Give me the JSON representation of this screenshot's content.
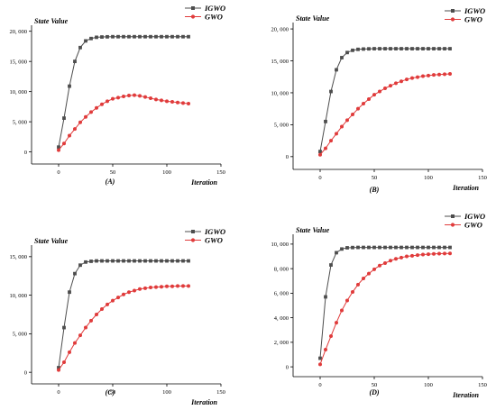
{
  "chart_data": [
    {
      "type": "line",
      "panel_label": "(A)",
      "ylabel": "State Value",
      "xlabel": "Iteration",
      "xlim": [
        -25,
        150
      ],
      "ylim": [
        -2000,
        21000
      ],
      "xticks": [
        0,
        50,
        100,
        150
      ],
      "xtick_labels": [
        "0",
        "50",
        "100",
        "150"
      ],
      "yticks": [
        0,
        5000,
        10000,
        15000,
        20000
      ],
      "ytick_labels": [
        "0",
        "5, 000",
        "10, 000",
        "15, 000",
        "20, 000"
      ],
      "legend_position": "top-right",
      "x": [
        0,
        5,
        10,
        15,
        20,
        25,
        30,
        35,
        40,
        45,
        50,
        55,
        60,
        65,
        70,
        75,
        80,
        85,
        90,
        95,
        100,
        105,
        110,
        115,
        120
      ],
      "series": [
        {
          "name": "IGWO",
          "color": "#4d4d4d",
          "marker": "square",
          "values": [
            800,
            5600,
            10900,
            15000,
            17300,
            18400,
            18800,
            19000,
            19050,
            19080,
            19100,
            19100,
            19100,
            19100,
            19100,
            19100,
            19100,
            19100,
            19100,
            19100,
            19100,
            19100,
            19100,
            19100,
            19100
          ]
        },
        {
          "name": "GWO",
          "color": "#e03b3b",
          "marker": "circle",
          "values": [
            300,
            1400,
            2700,
            3800,
            4900,
            5800,
            6600,
            7300,
            7900,
            8400,
            8800,
            9000,
            9200,
            9350,
            9400,
            9300,
            9100,
            8900,
            8700,
            8550,
            8400,
            8300,
            8200,
            8100,
            8000
          ]
        }
      ]
    },
    {
      "type": "line",
      "panel_label": "(B)",
      "ylabel": "State Value",
      "xlabel": "Iteration",
      "xlim": [
        -25,
        150
      ],
      "ylim": [
        -2000,
        21000
      ],
      "xticks": [
        0,
        50,
        100,
        150
      ],
      "xtick_labels": [
        "0",
        "50",
        "100",
        "150"
      ],
      "yticks": [
        0,
        5000,
        10000,
        15000,
        20000
      ],
      "ytick_labels": [
        "0",
        "5, 000",
        "10, 000",
        "15, 000",
        "20, 000"
      ],
      "legend_position": "top-right",
      "x": [
        0,
        5,
        10,
        15,
        20,
        25,
        30,
        35,
        40,
        45,
        50,
        55,
        60,
        65,
        70,
        75,
        80,
        85,
        90,
        95,
        100,
        105,
        110,
        115,
        120
      ],
      "series": [
        {
          "name": "IGWO",
          "color": "#4d4d4d",
          "marker": "square",
          "values": [
            800,
            5500,
            10200,
            13600,
            15500,
            16300,
            16650,
            16800,
            16850,
            16880,
            16900,
            16900,
            16900,
            16900,
            16900,
            16900,
            16900,
            16900,
            16900,
            16900,
            16900,
            16900,
            16900,
            16900,
            16900
          ]
        },
        {
          "name": "GWO",
          "color": "#e03b3b",
          "marker": "circle",
          "values": [
            300,
            1300,
            2500,
            3600,
            4700,
            5700,
            6600,
            7500,
            8300,
            9000,
            9700,
            10200,
            10700,
            11100,
            11500,
            11800,
            12100,
            12300,
            12450,
            12600,
            12700,
            12800,
            12850,
            12900,
            12950
          ]
        }
      ]
    },
    {
      "type": "line",
      "panel_label": "(C)",
      "ylabel": "State Value",
      "xlabel": "Iteration",
      "xlim": [
        -25,
        150
      ],
      "ylim": [
        -1500,
        16500
      ],
      "xticks": [
        0,
        50,
        100,
        150
      ],
      "xtick_labels": [
        "0",
        "50",
        "100",
        "150"
      ],
      "yticks": [
        0,
        5000,
        10000,
        15000
      ],
      "ytick_labels": [
        "0",
        "5, 000",
        "10, 000",
        "15, 000"
      ],
      "legend_position": "top-right",
      "x": [
        0,
        5,
        10,
        15,
        20,
        25,
        30,
        35,
        40,
        45,
        50,
        55,
        60,
        65,
        70,
        75,
        80,
        85,
        90,
        95,
        100,
        105,
        110,
        115,
        120
      ],
      "series": [
        {
          "name": "IGWO",
          "color": "#4d4d4d",
          "marker": "square",
          "values": [
            600,
            5800,
            10400,
            12800,
            13900,
            14300,
            14400,
            14450,
            14450,
            14450,
            14450,
            14450,
            14450,
            14450,
            14450,
            14450,
            14450,
            14450,
            14450,
            14450,
            14450,
            14450,
            14450,
            14450,
            14450
          ]
        },
        {
          "name": "GWO",
          "color": "#e03b3b",
          "marker": "circle",
          "values": [
            300,
            1300,
            2600,
            3800,
            4800,
            5800,
            6700,
            7500,
            8200,
            8800,
            9300,
            9700,
            10100,
            10400,
            10600,
            10800,
            10900,
            11000,
            11050,
            11100,
            11150,
            11150,
            11200,
            11200,
            11200
          ]
        }
      ]
    },
    {
      "type": "line",
      "panel_label": "(D)",
      "ylabel": "State Value",
      "xlabel": "Iteration",
      "xlim": [
        -25,
        150
      ],
      "ylim": [
        -800,
        10800
      ],
      "xticks": [
        0,
        50,
        100,
        150
      ],
      "xtick_labels": [
        "0",
        "50",
        "100",
        "150"
      ],
      "yticks": [
        0,
        2000,
        4000,
        6000,
        8000,
        10000
      ],
      "ytick_labels": [
        "0",
        "2, 000",
        "4, 000",
        "6, 000",
        "8, 000",
        "10, 000"
      ],
      "legend_position": "top-right",
      "x": [
        0,
        5,
        10,
        15,
        20,
        25,
        30,
        35,
        40,
        45,
        50,
        55,
        60,
        65,
        70,
        75,
        80,
        85,
        90,
        95,
        100,
        105,
        110,
        115,
        120
      ],
      "series": [
        {
          "name": "IGWO",
          "color": "#4d4d4d",
          "marker": "square",
          "values": [
            700,
            5700,
            8300,
            9300,
            9600,
            9700,
            9720,
            9730,
            9730,
            9730,
            9730,
            9730,
            9730,
            9730,
            9730,
            9730,
            9730,
            9730,
            9730,
            9730,
            9730,
            9730,
            9730,
            9730,
            9730
          ]
        },
        {
          "name": "GWO",
          "color": "#e03b3b",
          "marker": "circle",
          "values": [
            200,
            1400,
            2500,
            3600,
            4600,
            5400,
            6100,
            6700,
            7200,
            7600,
            7950,
            8250,
            8450,
            8650,
            8800,
            8900,
            9000,
            9050,
            9100,
            9150,
            9180,
            9200,
            9220,
            9230,
            9240
          ]
        }
      ]
    }
  ]
}
